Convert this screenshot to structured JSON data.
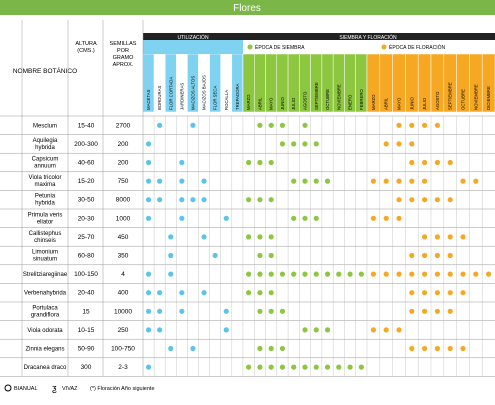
{
  "header": {
    "title": "Flores"
  },
  "columns": {
    "nombre": "NOMBRE BOTÁNICO",
    "altura": "ALTURA (CMS.)",
    "semillas": "SEMILLAS POR GRAMO APROX.",
    "utilizacion": "UTILIZACIÓN",
    "siembra_floracion": "SIEMBRA Y FLORACIÓN",
    "epoca_siembra": "ÉPOCA DE SIEMBRA",
    "epoca_floracion": "ÉPOCA DE FLORACIÓN",
    "usos": [
      "MACETAS",
      "BORDURAS",
      "FLOR CORTADA",
      "JARDINERAS",
      "MACIZOS ALTOS",
      "MACIZOS BAJOS",
      "FLOR SECA",
      "ROCALLA",
      "TREPADORA"
    ],
    "meses_siembra": [
      "MARZO",
      "ABRIL",
      "MAYO",
      "JUNIO",
      "JULIO",
      "AGOSTO",
      "SEPTIEMBRE",
      "OCTUBRE",
      "NOVIEMBRE",
      "ENERO",
      "FEBRERO"
    ],
    "meses_floracion": [
      "MARZO",
      "ABRIL",
      "MAYO",
      "JUNIO",
      "JULIO",
      "AGOSTO",
      "SEPTIEMBRE",
      "OCTUBRE",
      "NOVIEMBRE",
      "DICIEMBRE"
    ]
  },
  "rows": [
    {
      "nombre": "Mesclum",
      "altura": "15-40",
      "semillas": "2700",
      "uso": [
        1,
        4
      ],
      "siembra": [
        1,
        2,
        3,
        5
      ],
      "floracion": [
        2,
        3,
        4,
        5
      ]
    },
    {
      "nombre": "Aquilegia hybrida",
      "altura": "200-300",
      "semillas": "200",
      "uso": [
        0
      ],
      "siembra": [
        3,
        4,
        5,
        6
      ],
      "floracion": [
        1,
        2,
        3
      ]
    },
    {
      "nombre": "Capsicum annuum",
      "altura": "40-60",
      "semillas": "200",
      "uso": [
        0,
        3
      ],
      "siembra": [
        0,
        1,
        2
      ],
      "floracion": [
        3,
        4,
        5,
        6
      ]
    },
    {
      "nombre": "Viola tricolor maxima",
      "altura": "15-20",
      "semillas": "750",
      "uso": [
        0,
        1,
        3,
        5
      ],
      "siembra": [
        4,
        5,
        6,
        7
      ],
      "floracion": [
        0,
        1,
        2,
        3,
        4,
        7,
        8
      ]
    },
    {
      "nombre": "Petunia hybrida",
      "altura": "30-50",
      "semillas": "8000",
      "uso": [
        0,
        1,
        3,
        4,
        5
      ],
      "siembra": [
        0,
        1,
        2
      ],
      "floracion": [
        2,
        3,
        4,
        5,
        6
      ]
    },
    {
      "nombre": "Primula veris eliator",
      "altura": "20-30",
      "semillas": "1000",
      "uso": [
        0,
        3,
        7
      ],
      "siembra": [
        4,
        5,
        6
      ],
      "floracion": [
        0,
        1,
        2
      ]
    },
    {
      "nombre": "Callistephus chinseis",
      "altura": "25-70",
      "semillas": "450",
      "uso": [
        2,
        5
      ],
      "siembra": [
        0,
        1,
        2
      ],
      "floracion": [
        4,
        5,
        6,
        7
      ]
    },
    {
      "nombre": "Limonium sinuatum",
      "altura": "60-80",
      "semillas": "350",
      "uso": [
        2,
        6
      ],
      "siembra": [
        1,
        2
      ],
      "floracion": [
        3,
        4,
        5,
        6
      ]
    },
    {
      "nombre": "Strelitziaregiinae",
      "altura": "100-150",
      "semillas": "4",
      "uso": [
        0,
        2
      ],
      "siembra": [
        0,
        1,
        2,
        3,
        4,
        5,
        6,
        7,
        8,
        9,
        10
      ],
      "floracion": [
        0,
        1,
        2,
        3,
        4,
        5,
        6,
        7,
        8,
        9
      ]
    },
    {
      "nombre": "Verbenahybrida",
      "altura": "20-40",
      "semillas": "400",
      "uso": [
        0,
        1,
        3,
        5
      ],
      "siembra": [
        0,
        1,
        2
      ],
      "floracion": [
        3,
        4,
        5,
        6,
        7
      ]
    },
    {
      "nombre": "Portulaca grandiflora",
      "altura": "15",
      "semillas": "10000",
      "uso": [
        0,
        1,
        3,
        7
      ],
      "siembra": [
        1,
        2,
        3
      ],
      "floracion": [
        3,
        4,
        5,
        6
      ]
    },
    {
      "nombre": "Viola odorata",
      "altura": "10-15",
      "semillas": "250",
      "uso": [
        0,
        1,
        7
      ],
      "siembra": [
        5,
        6,
        7
      ],
      "floracion": [
        0,
        1,
        2
      ]
    },
    {
      "nombre": "Zinnia elegans",
      "altura": "50-90",
      "semillas": "100-750",
      "uso": [
        2,
        4
      ],
      "siembra": [
        1,
        2,
        3
      ],
      "floracion": [
        3,
        4,
        5,
        6,
        7
      ]
    },
    {
      "nombre": "Dracanea draco",
      "altura": "300",
      "semillas": "2-3",
      "uso": [
        0
      ],
      "siembra": [
        0,
        1,
        2,
        3,
        4,
        5,
        6,
        7,
        8,
        9,
        10
      ],
      "floracion": []
    }
  ],
  "footer": {
    "bianual": "BIANUAL",
    "vivaz": "VIVAZ",
    "nota": "(*) Floración Año siguiente"
  }
}
